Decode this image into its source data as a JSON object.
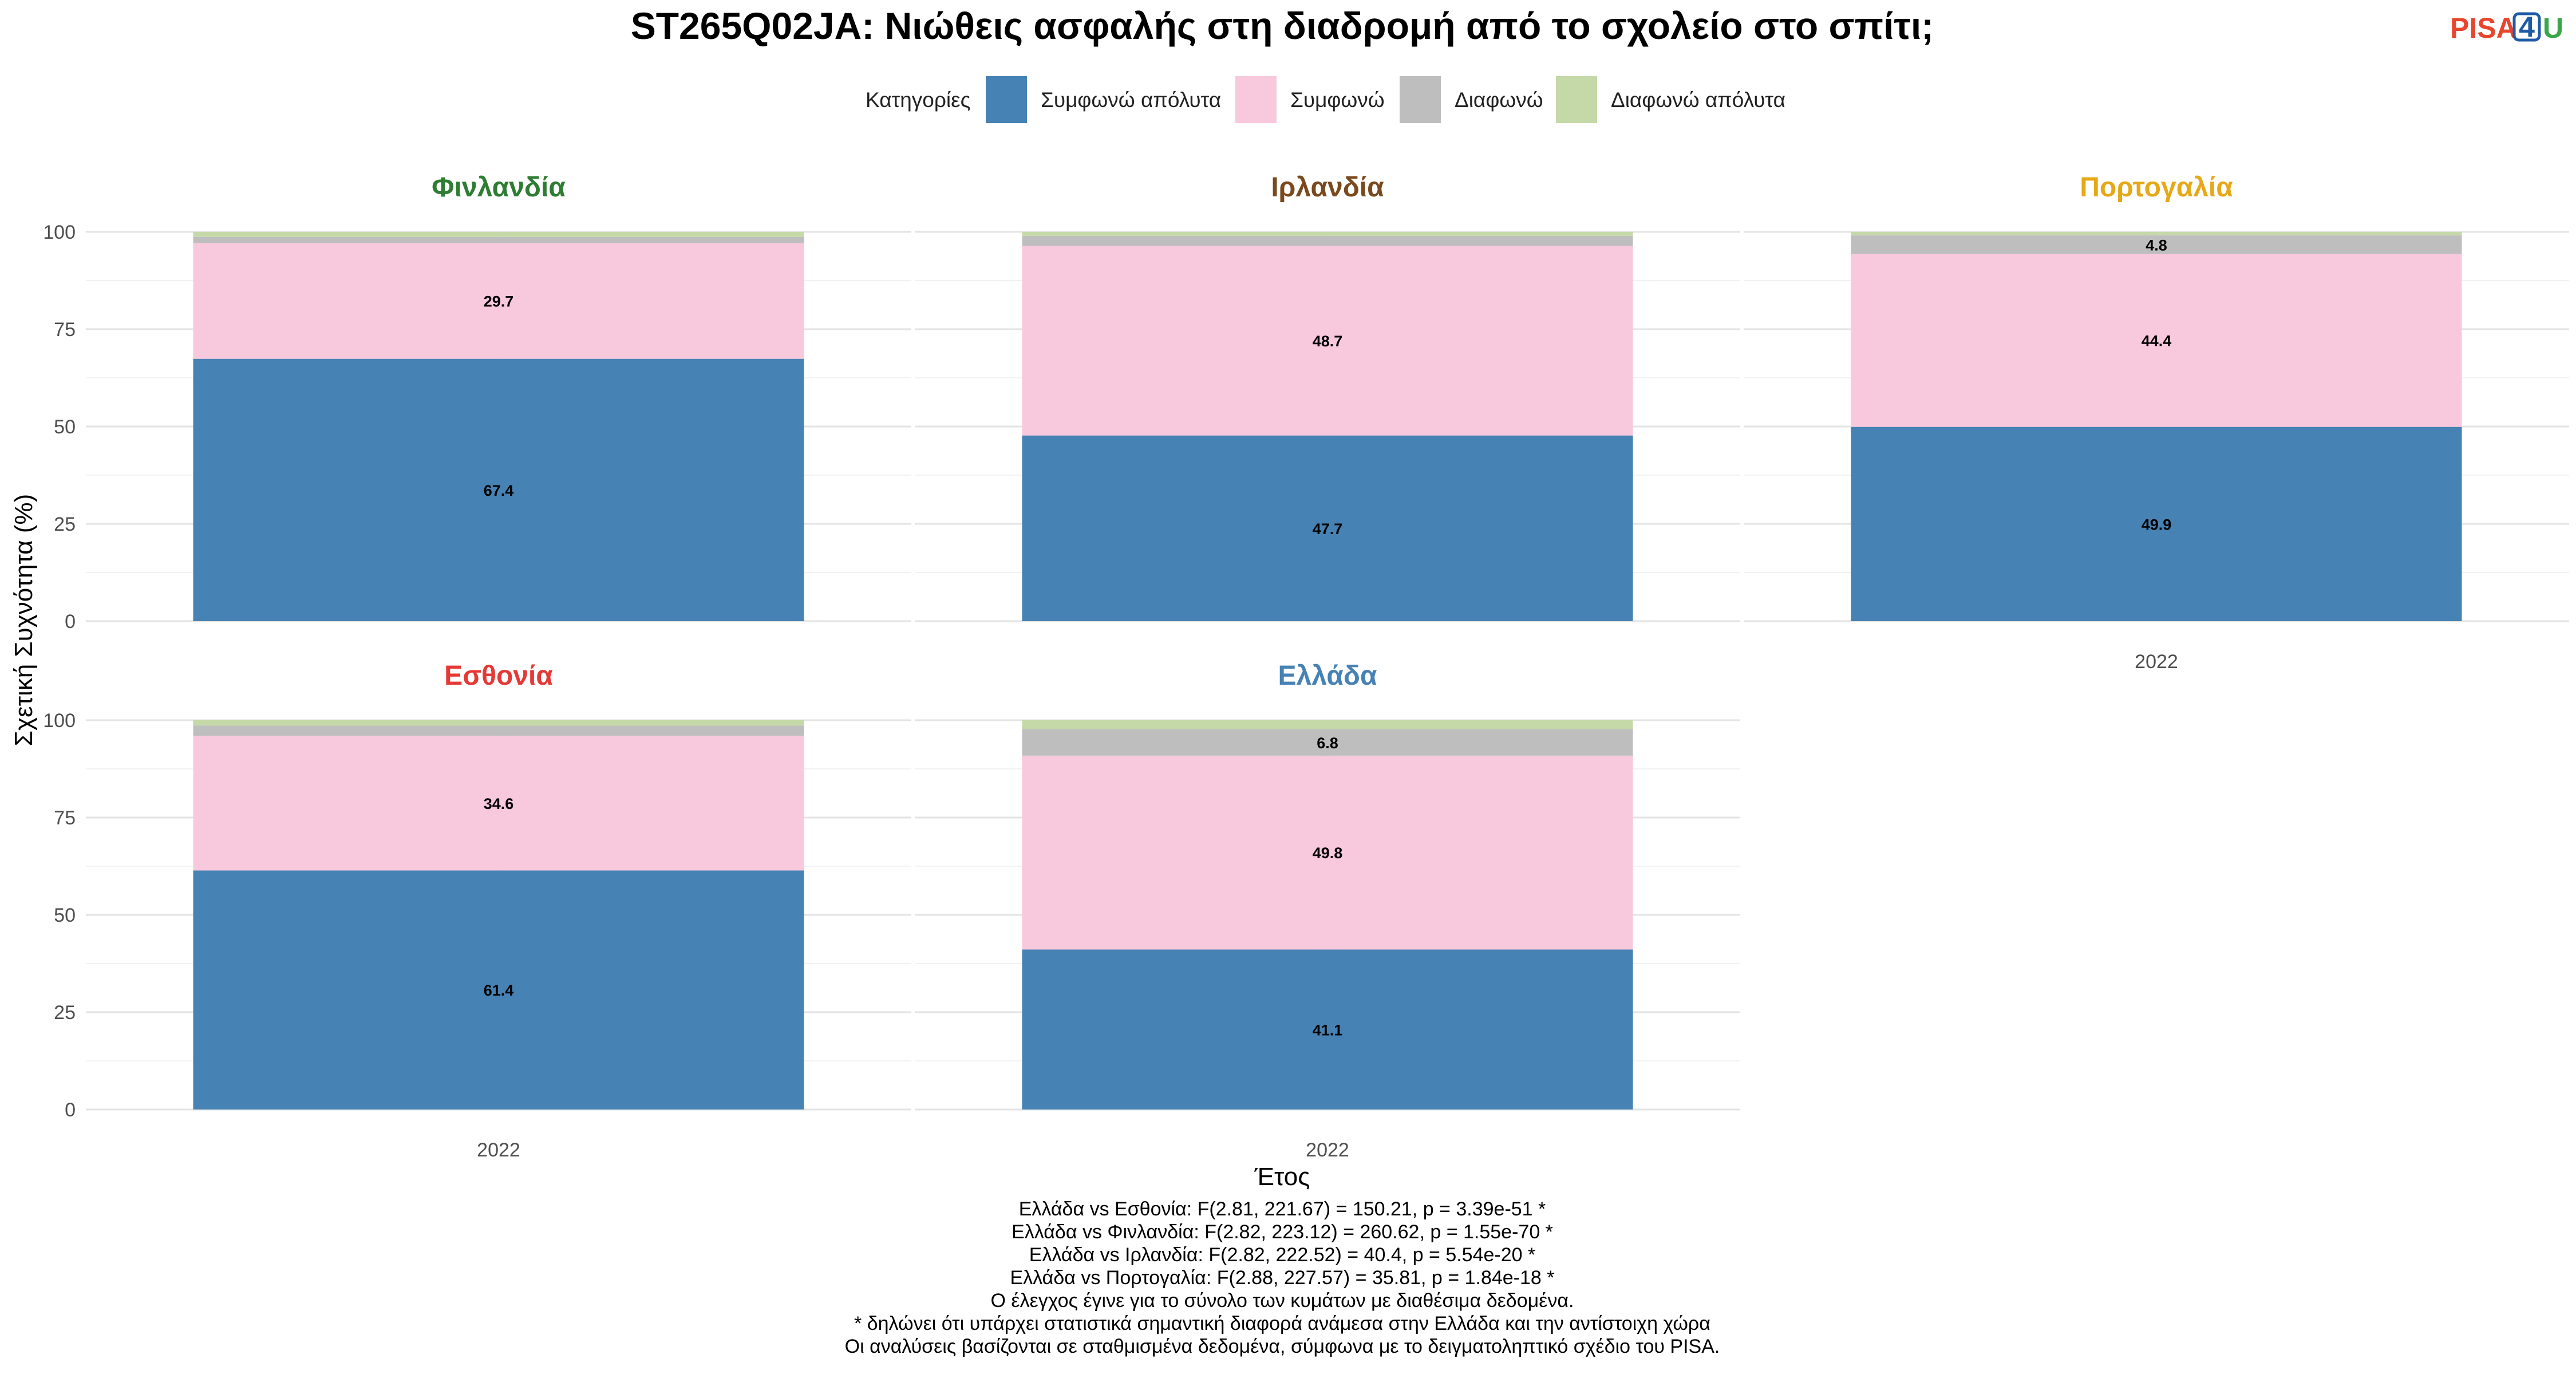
{
  "title": "ST265Q02JA: Νιώθεις ασφαλής στη διαδρομή από το σχολείο στο σπίτι;",
  "logo": {
    "part1": "PISA",
    "part2": "4",
    "part3": "U",
    "colors": {
      "part1": "#e8452c",
      "part2": "#1f5aa6",
      "part3": "#3aa64a"
    }
  },
  "legend": {
    "title": "Κατηγορίες",
    "items": [
      {
        "label": "Συμφωνώ απόλυτα",
        "color": "#4682b4"
      },
      {
        "label": "Συμφωνώ",
        "color": "#f8c8dc"
      },
      {
        "label": "Διαφωνώ",
        "color": "#bebebe"
      },
      {
        "label": "Διαφωνώ απόλυτα",
        "color": "#c5d9a8"
      }
    ]
  },
  "chart_data": {
    "type": "bar",
    "stacked": true,
    "xlabel": "Έτος",
    "ylabel": "Σχετική Συχνότητα (%)",
    "ylim": [
      0,
      100
    ],
    "yticks": [
      "0",
      "25",
      "50",
      "75",
      "100"
    ],
    "grid": true,
    "legend_position": "top",
    "categories": [
      "2022"
    ],
    "facets": [
      {
        "name": "Φινλανδία",
        "color": "#2e7d32",
        "values": [
          67.4,
          29.7,
          1.6,
          1.3
        ],
        "labels": [
          "67.4",
          "29.7",
          "",
          ""
        ]
      },
      {
        "name": "Ιρλανδία",
        "color": "#7a4a1e",
        "values": [
          47.7,
          48.7,
          2.6,
          1.0
        ],
        "labels": [
          "47.7",
          "48.7",
          "",
          ""
        ]
      },
      {
        "name": "Πορτογαλία",
        "color": "#e6a817",
        "values": [
          49.9,
          44.4,
          4.8,
          0.9
        ],
        "labels": [
          "49.9",
          "44.4",
          "4.8",
          ""
        ]
      },
      {
        "name": "Εσθονία",
        "color": "#e53935",
        "values": [
          61.4,
          34.6,
          2.6,
          1.4
        ],
        "labels": [
          "61.4",
          "34.6",
          "",
          ""
        ]
      },
      {
        "name": "Ελλάδα",
        "color": "#4682b4",
        "values": [
          41.1,
          49.8,
          6.8,
          2.3
        ],
        "labels": [
          "41.1",
          "49.8",
          "6.8",
          ""
        ]
      }
    ]
  },
  "footnotes": [
    "Ελλάδα vs Εσθονία: F(2.81, 221.67) = 150.21, p = 3.39e-51 *",
    "Ελλάδα vs Φινλανδία: F(2.82, 223.12) = 260.62, p = 1.55e-70 *",
    "Ελλάδα vs Ιρλανδία: F(2.82, 222.52) = 40.4, p = 5.54e-20 *",
    "Ελλάδα vs Πορτογαλία: F(2.88, 227.57) = 35.81, p = 1.84e-18 *",
    "Ο έλεγχος έγινε για το σύνολο των κυμάτων με διαθέσιμα δεδομένα.",
    "* δηλώνει ότι υπάρχει στατιστικά σημαντική διαφορά ανάμεσα στην Ελλάδα και την αντίστοιχη χώρα",
    "Οι αναλύσεις βασίζονται σε σταθμισμένα δεδομένα, σύμφωνα με το δειγματοληπτικό σχέδιο του PISA."
  ]
}
